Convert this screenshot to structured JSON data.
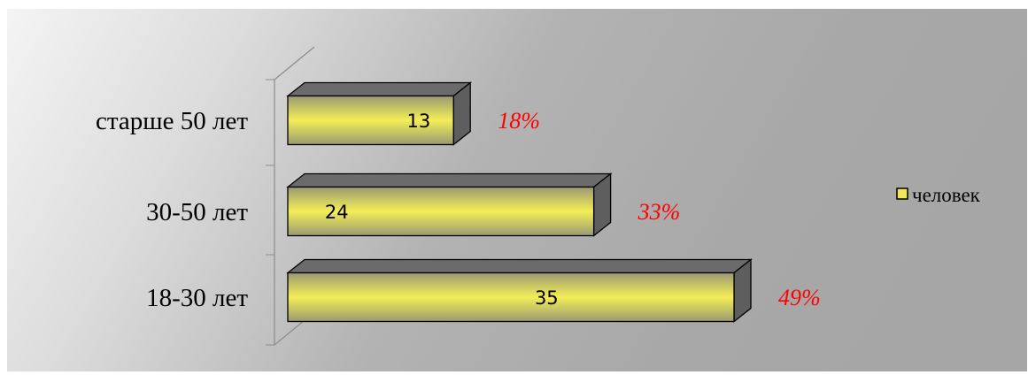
{
  "chart_data": {
    "type": "bar",
    "orientation": "horizontal",
    "style": "3d",
    "categories": [
      "18-30 лет",
      "30-50 лет",
      "старше 50 лет"
    ],
    "series": [
      {
        "name": "человек",
        "values": [
          35,
          24,
          13
        ],
        "color": "#f0ea5a"
      }
    ],
    "data_labels": [
      "35",
      "24",
      "13"
    ],
    "percent_labels": [
      "49%",
      "33%",
      "18%"
    ],
    "percent_color": "#ff0000",
    "legend": {
      "position": "right",
      "entries": [
        "человек"
      ]
    },
    "xlim": [
      0,
      35
    ],
    "grid": false
  }
}
